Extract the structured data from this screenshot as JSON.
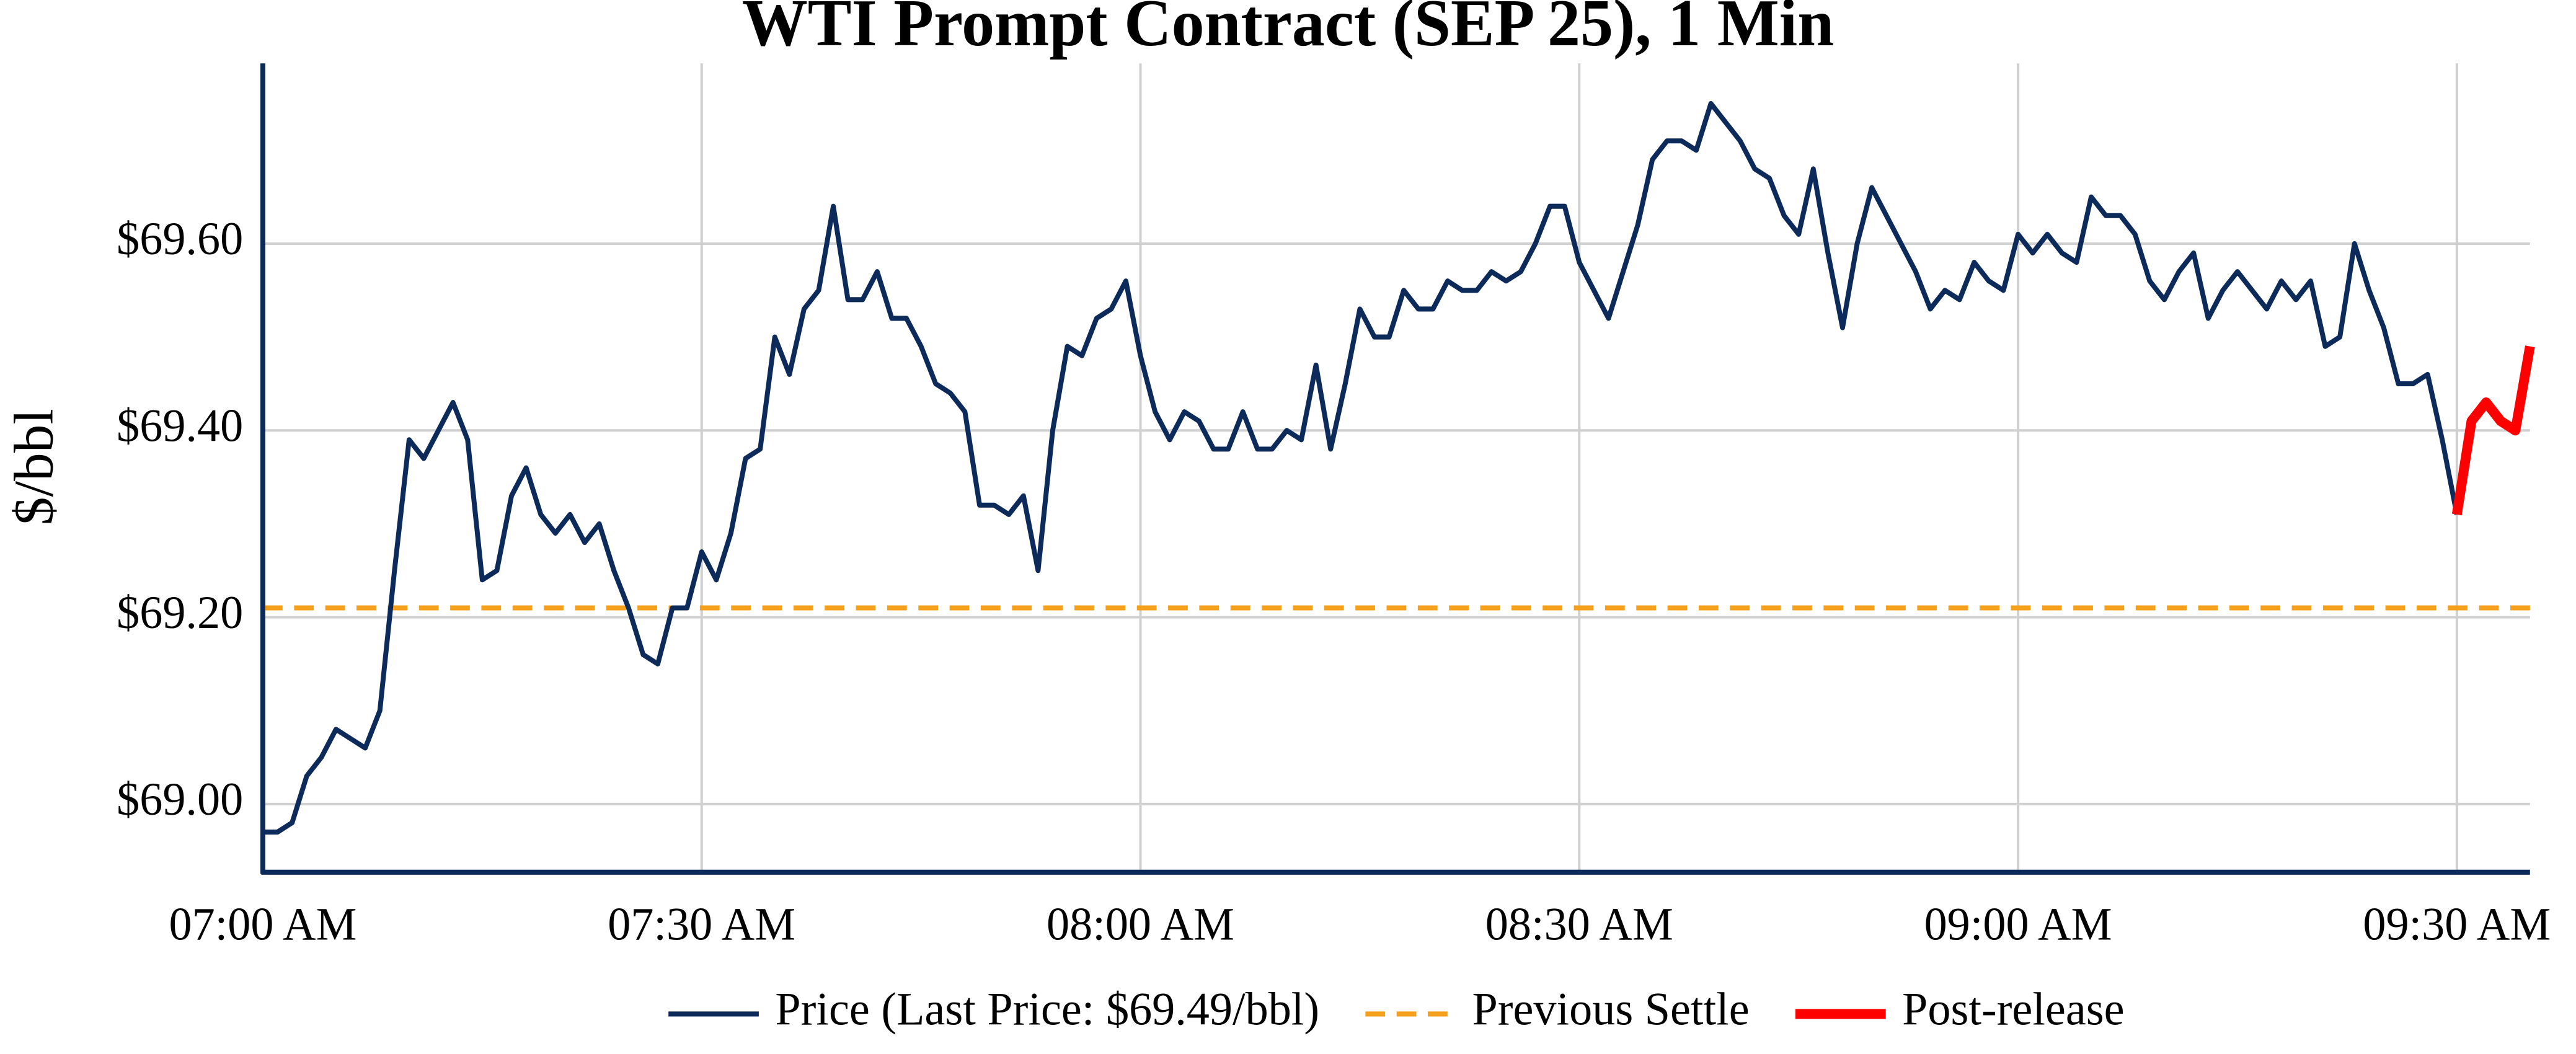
{
  "chart_data": {
    "type": "line",
    "title": "WTI Prompt Contract (SEP 25), 1 Min",
    "ylabel": "$/bbl",
    "xlim": [
      0,
      155
    ],
    "ylim": [
      68.927,
      69.793
    ],
    "xticks": [
      {
        "value": 0,
        "label": "07:00 AM"
      },
      {
        "value": 30,
        "label": "07:30 AM"
      },
      {
        "value": 60,
        "label": "08:00 AM"
      },
      {
        "value": 90,
        "label": "08:30 AM"
      },
      {
        "value": 120,
        "label": "09:00 AM"
      },
      {
        "value": 150,
        "label": "09:30 AM"
      }
    ],
    "yticks": [
      {
        "value": 69.0,
        "label": "$69.00"
      },
      {
        "value": 69.2,
        "label": "$69.20"
      },
      {
        "value": 69.4,
        "label": "$69.40"
      },
      {
        "value": 69.6,
        "label": "$69.60"
      }
    ],
    "grid": true,
    "series": [
      {
        "name": "Price (Last Price: $69.49/bbl)",
        "color": "#0d2b5a",
        "width": 3,
        "x": [
          0,
          1,
          2,
          3,
          4,
          5,
          6,
          7,
          8,
          9,
          10,
          11,
          12,
          13,
          14,
          15,
          16,
          17,
          18,
          19,
          20,
          21,
          22,
          23,
          24,
          25,
          26,
          27,
          28,
          29,
          30,
          31,
          32,
          33,
          34,
          35,
          36,
          37,
          38,
          39,
          40,
          41,
          42,
          43,
          44,
          45,
          46,
          47,
          48,
          49,
          50,
          51,
          52,
          53,
          54,
          55,
          56,
          57,
          58,
          59,
          60,
          61,
          62,
          63,
          64,
          65,
          66,
          67,
          68,
          69,
          70,
          71,
          72,
          73,
          74,
          75,
          76,
          77,
          78,
          79,
          80,
          81,
          82,
          83,
          84,
          85,
          86,
          87,
          88,
          89,
          90,
          91,
          92,
          93,
          94,
          95,
          96,
          97,
          98,
          99,
          100,
          101,
          102,
          103,
          104,
          105,
          106,
          107,
          108,
          109,
          110,
          111,
          112,
          113,
          114,
          115,
          116,
          117,
          118,
          119,
          120,
          121,
          122,
          123,
          124,
          125,
          126,
          127,
          128,
          129,
          130,
          131,
          132,
          133,
          134,
          135,
          136,
          137,
          138,
          139,
          140,
          141,
          142,
          143,
          144,
          145,
          146,
          147,
          148,
          149,
          150
        ],
        "values": [
          68.97,
          68.97,
          68.98,
          69.03,
          69.05,
          69.08,
          69.07,
          69.06,
          69.1,
          69.25,
          69.39,
          69.37,
          69.4,
          69.43,
          69.39,
          69.24,
          69.25,
          69.33,
          69.36,
          69.31,
          69.29,
          69.31,
          69.28,
          69.3,
          69.25,
          69.21,
          69.16,
          69.15,
          69.21,
          69.21,
          69.27,
          69.24,
          69.29,
          69.37,
          69.38,
          69.5,
          69.46,
          69.53,
          69.55,
          69.64,
          69.54,
          69.54,
          69.57,
          69.52,
          69.52,
          69.49,
          69.45,
          69.44,
          69.42,
          69.32,
          69.32,
          69.31,
          69.33,
          69.25,
          69.4,
          69.49,
          69.48,
          69.52,
          69.53,
          69.56,
          69.48,
          69.42,
          69.39,
          69.42,
          69.41,
          69.38,
          69.38,
          69.42,
          69.38,
          69.38,
          69.4,
          69.39,
          69.47,
          69.38,
          69.45,
          69.53,
          69.5,
          69.5,
          69.55,
          69.53,
          69.53,
          69.56,
          69.55,
          69.55,
          69.57,
          69.56,
          69.57,
          69.6,
          69.64,
          69.64,
          69.58,
          69.55,
          69.52,
          69.57,
          69.62,
          69.69,
          69.71,
          69.71,
          69.7,
          69.75,
          69.73,
          69.71,
          69.68,
          69.67,
          69.63,
          69.61,
          69.68,
          69.59,
          69.51,
          69.6,
          69.66,
          69.63,
          69.6,
          69.57,
          69.53,
          69.55,
          69.54,
          69.58,
          69.56,
          69.55,
          69.61,
          69.59,
          69.61,
          69.59,
          69.58,
          69.65,
          69.63,
          69.63,
          69.61,
          69.56,
          69.54,
          69.57,
          69.59,
          69.52,
          69.55,
          69.57,
          69.55,
          69.53,
          69.56,
          69.54,
          69.56,
          69.49,
          69.5,
          69.6,
          69.55,
          69.51,
          69.45,
          69.45,
          69.46,
          69.39,
          69.31
        ]
      },
      {
        "name": "Post-release",
        "color": "#ff0000",
        "width": 6,
        "x": [
          150,
          151,
          152,
          153,
          154,
          155
        ],
        "values": [
          69.31,
          69.41,
          69.43,
          69.41,
          69.4,
          69.49
        ]
      }
    ],
    "hlines": [
      {
        "name": "Previous Settle",
        "color": "#f5a01a",
        "value": 69.21
      }
    ]
  }
}
